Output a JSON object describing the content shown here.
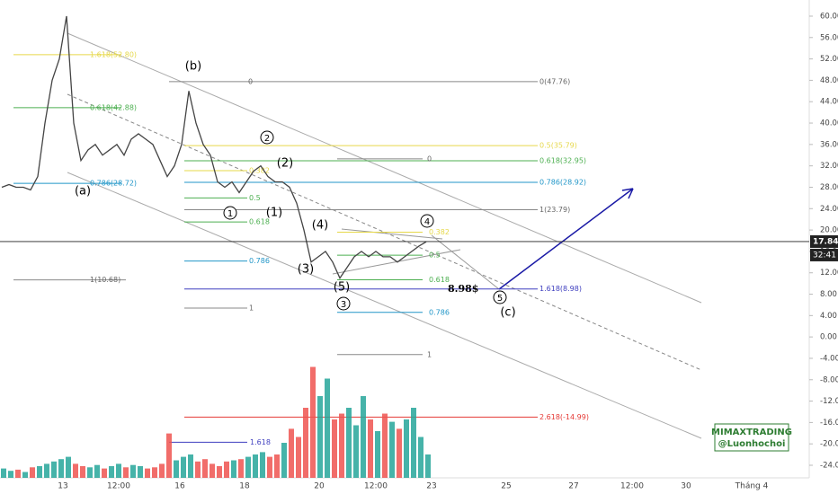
{
  "chart_data": {
    "type": "line",
    "ylim": [
      -26.35,
      63.02
    ],
    "yticks": [
      {
        "value": 60,
        "label": "60.00"
      },
      {
        "value": 56,
        "label": "56.00"
      },
      {
        "value": 52,
        "label": "52.00"
      },
      {
        "value": 48,
        "label": "48.00"
      },
      {
        "value": 44,
        "label": "44.00"
      },
      {
        "value": 40,
        "label": "40.00"
      },
      {
        "value": 36,
        "label": "36.00"
      },
      {
        "value": 32,
        "label": "32.00"
      },
      {
        "value": 28,
        "label": "28.00"
      },
      {
        "value": 24,
        "label": "24.00"
      },
      {
        "value": 20,
        "label": "20.00"
      },
      {
        "value": 16,
        "label": "16.00"
      },
      {
        "value": 12,
        "label": "12.00"
      },
      {
        "value": 8,
        "label": "8.00"
      },
      {
        "value": 4,
        "label": "4.00"
      },
      {
        "value": 0,
        "label": "0.00"
      },
      {
        "value": -4,
        "label": "-4.00"
      },
      {
        "value": -8,
        "label": "-8.00"
      },
      {
        "value": -12,
        "label": "-12.00"
      },
      {
        "value": -16,
        "label": "-16.00"
      },
      {
        "value": -20,
        "label": "-20.00"
      },
      {
        "value": -24,
        "label": "-24.00"
      }
    ],
    "x_labels": [
      "13",
      "12:00",
      "16",
      "18",
      "20",
      "12:00",
      "23",
      "25",
      "27",
      "12:00",
      "30",
      "Tháng 4"
    ],
    "series": [
      {
        "name": "Price",
        "color": "#444444",
        "values": [
          28,
          28.5,
          28,
          28,
          27.5,
          30,
          40,
          48,
          52,
          60,
          40,
          33,
          35,
          36,
          34,
          35,
          36,
          34,
          37,
          38,
          37,
          36,
          33,
          30,
          32,
          36,
          46,
          40,
          36,
          34,
          29,
          28,
          29,
          27,
          29,
          31,
          32,
          30,
          29,
          29,
          28,
          25,
          20,
          14,
          15,
          16,
          14,
          11,
          13,
          15,
          16,
          15,
          16,
          15,
          15,
          14,
          15,
          16,
          17,
          17.8
        ]
      }
    ],
    "volume": {
      "up_color": "#26a69a",
      "down_color": "#ef5350",
      "values": [
        8,
        6,
        7,
        5,
        9,
        10,
        12,
        14,
        16,
        18,
        12,
        10,
        9,
        11,
        8,
        10,
        12,
        9,
        11,
        10,
        8,
        9,
        12,
        38,
        15,
        18,
        20,
        14,
        16,
        12,
        10,
        14,
        15,
        16,
        18,
        20,
        22,
        18,
        20,
        30,
        42,
        35,
        60,
        95,
        70,
        85,
        50,
        55,
        60,
        45,
        70,
        50,
        40,
        55,
        48,
        42,
        50,
        60,
        35,
        20
      ]
    },
    "current_price": {
      "value": 17.84,
      "label": "17.84"
    },
    "countdown": "32:41",
    "target_label": "8.98$",
    "fib_levels": [
      {
        "label": "1.618(52.80)",
        "value": 52.8,
        "color": "#e6d84a"
      },
      {
        "label": "0.618(42.88)",
        "value": 42.88,
        "color": "#4caf50"
      },
      {
        "label": "0.786(28.72)",
        "value": 28.72,
        "color": "#2196c8"
      },
      {
        "label": "1(10.68)",
        "value": 10.68,
        "color": "#888888"
      },
      {
        "label": "0(47.76)",
        "value": 47.76,
        "color": "#888888"
      },
      {
        "label": "0.5(35.79)",
        "value": 35.79,
        "color": "#e6d84a"
      },
      {
        "label": "0.618(32.95)",
        "value": 32.95,
        "color": "#4caf50"
      },
      {
        "label": "0.786(28.92)",
        "value": 28.92,
        "color": "#2196c8"
      },
      {
        "label": "1(23.79)",
        "value": 23.79,
        "color": "#888888"
      },
      {
        "label": "1.618(8.98)",
        "value": 8.98,
        "color": "#3f3fbf"
      },
      {
        "label": "2.618(-14.99)",
        "value": -14.99,
        "color": "#e53935"
      },
      {
        "label": "0",
        "value": 47.76,
        "color": "#888888"
      },
      {
        "label": "0.382",
        "value": 31.1,
        "color": "#e6d84a"
      },
      {
        "label": "0.5",
        "value": 26.0,
        "color": "#4caf50"
      },
      {
        "label": "0.618",
        "value": 21.5,
        "color": "#4caf50"
      },
      {
        "label": "0.786",
        "value": 14.2,
        "color": "#2196c8"
      },
      {
        "label": "1",
        "value": 5.4,
        "color": "#888888"
      },
      {
        "label": "0",
        "value": 33.3,
        "color": "#888888"
      },
      {
        "label": "0.382",
        "value": 19.6,
        "color": "#e6d84a"
      },
      {
        "label": "0.5",
        "value": 15.3,
        "color": "#4caf50"
      },
      {
        "label": "0.618",
        "value": 10.7,
        "color": "#4caf50"
      },
      {
        "label": "0.786",
        "value": 4.6,
        "color": "#2196c8"
      },
      {
        "label": "1",
        "value": -3.3,
        "color": "#888888"
      },
      {
        "label": "1.618",
        "value": -19.7,
        "color": "#3f3fbf"
      }
    ],
    "wave_labels": [
      "(a)",
      "(b)",
      "(c)",
      "(1)",
      "(2)",
      "(3)",
      "(4)",
      "(5)"
    ],
    "circled_labels": [
      "1",
      "2",
      "3",
      "4",
      "5"
    ],
    "watermark": [
      "MIMAXTRADING",
      "@Luonhochoi"
    ]
  }
}
